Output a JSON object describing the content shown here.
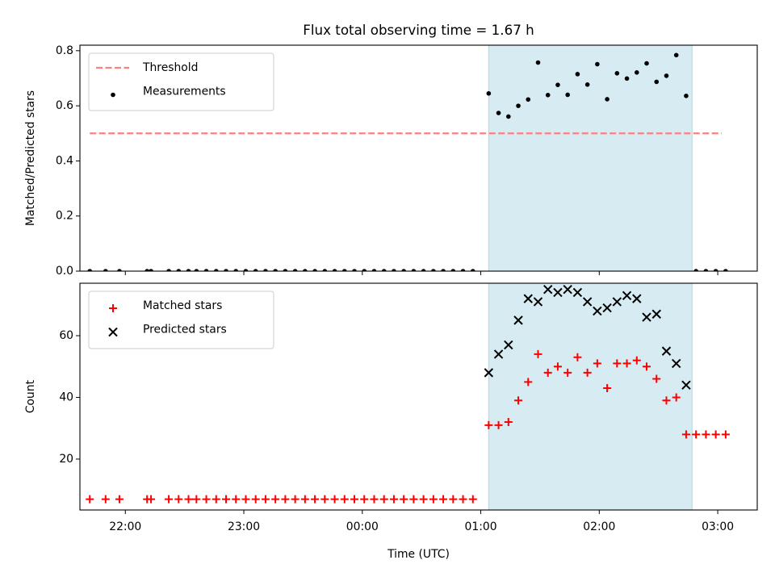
{
  "chart_data": [
    {
      "type": "scatter",
      "title": "Flux total observing time = 1.67 h",
      "xlabel": "",
      "ylabel": "Matched/Predicted stars",
      "xlim": [
        "21:37",
        "03:20"
      ],
      "ylim": [
        0,
        0.82
      ],
      "yticks": [
        0.0,
        0.2,
        0.4,
        0.6,
        0.8
      ],
      "ytick_labels": [
        "0.0",
        "0.2",
        "0.4",
        "0.6",
        "0.8"
      ],
      "legend_position": "upper left",
      "shaded_span": [
        "01:04",
        "02:47"
      ],
      "threshold": {
        "name": "Threshold",
        "value": 0.5,
        "x_range": [
          "21:42",
          "03:02"
        ],
        "color": "#ff7f7f"
      },
      "series": [
        {
          "name": "Measurements",
          "marker": "dot",
          "color": "#000000",
          "x": [
            "21:42",
            "21:50",
            "21:57",
            "22:11",
            "22:13",
            "22:22",
            "22:27",
            "22:32",
            "22:36",
            "22:41",
            "22:46",
            "22:51",
            "22:56",
            "23:01",
            "23:06",
            "23:11",
            "23:16",
            "23:21",
            "23:26",
            "23:31",
            "23:36",
            "23:41",
            "23:46",
            "23:51",
            "23:56",
            "00:01",
            "00:06",
            "00:11",
            "00:16",
            "00:21",
            "00:26",
            "00:31",
            "00:36",
            "00:41",
            "00:46",
            "00:51",
            "00:56",
            "01:04",
            "01:09",
            "01:14",
            "01:19",
            "01:24",
            "01:29",
            "01:34",
            "01:39",
            "01:44",
            "01:49",
            "01:54",
            "01:59",
            "02:04",
            "02:09",
            "02:14",
            "02:19",
            "02:24",
            "02:29",
            "02:34",
            "02:39",
            "02:44",
            "02:49",
            "02:54",
            "02:59",
            "03:04"
          ],
          "y": [
            0,
            0,
            0,
            0,
            0,
            0,
            0,
            0,
            0,
            0,
            0,
            0,
            0,
            0,
            0,
            0,
            0,
            0,
            0,
            0,
            0,
            0,
            0,
            0,
            0,
            0,
            0,
            0,
            0,
            0,
            0,
            0,
            0,
            0,
            0,
            0,
            0,
            0.645,
            0.574,
            0.561,
            0.6,
            0.623,
            0.757,
            0.639,
            0.676,
            0.64,
            0.715,
            0.677,
            0.751,
            0.624,
            0.718,
            0.699,
            0.721,
            0.754,
            0.687,
            0.709,
            0.784,
            0.636,
            0,
            0,
            0,
            0
          ]
        }
      ]
    },
    {
      "type": "scatter",
      "title": "",
      "xlabel": "Time (UTC)",
      "ylabel": "Count",
      "xlim": [
        "21:37",
        "03:20"
      ],
      "ylim": [
        3.5,
        77
      ],
      "yticks": [
        20,
        40,
        60
      ],
      "ytick_labels": [
        "20",
        "40",
        "60"
      ],
      "xticks": [
        "22:00",
        "23:00",
        "00:00",
        "01:00",
        "02:00",
        "03:00"
      ],
      "xtick_labels": [
        "22:00",
        "23:00",
        "00:00",
        "01:00",
        "02:00",
        "03:00"
      ],
      "legend_position": "upper left",
      "shaded_span": [
        "01:04",
        "02:47"
      ],
      "series": [
        {
          "name": "Matched stars",
          "marker": "plus",
          "color": "#ff0000",
          "x": [
            "21:42",
            "21:50",
            "21:57",
            "22:11",
            "22:13",
            "22:22",
            "22:27",
            "22:32",
            "22:36",
            "22:41",
            "22:46",
            "22:51",
            "22:56",
            "23:01",
            "23:06",
            "23:11",
            "23:16",
            "23:21",
            "23:26",
            "23:31",
            "23:36",
            "23:41",
            "23:46",
            "23:51",
            "23:56",
            "00:01",
            "00:06",
            "00:11",
            "00:16",
            "00:21",
            "00:26",
            "00:31",
            "00:36",
            "00:41",
            "00:46",
            "00:51",
            "00:56",
            "01:04",
            "01:09",
            "01:14",
            "01:19",
            "01:24",
            "01:29",
            "01:34",
            "01:39",
            "01:44",
            "01:49",
            "01:54",
            "01:59",
            "02:04",
            "02:09",
            "02:14",
            "02:19",
            "02:24",
            "02:29",
            "02:34",
            "02:39",
            "02:44",
            "02:49",
            "02:54",
            "02:59",
            "03:04"
          ],
          "y": [
            7,
            7,
            7,
            7,
            7,
            7,
            7,
            7,
            7,
            7,
            7,
            7,
            7,
            7,
            7,
            7,
            7,
            7,
            7,
            7,
            7,
            7,
            7,
            7,
            7,
            7,
            7,
            7,
            7,
            7,
            7,
            7,
            7,
            7,
            7,
            7,
            7,
            31,
            31,
            32,
            39,
            45,
            54,
            48,
            50,
            48,
            53,
            48,
            51,
            43,
            51,
            51,
            52,
            50,
            46,
            39,
            40,
            28,
            28,
            28,
            28,
            28
          ]
        },
        {
          "name": "Predicted stars",
          "marker": "x",
          "color": "#000000",
          "x": [
            "01:04",
            "01:09",
            "01:14",
            "01:19",
            "01:24",
            "01:29",
            "01:34",
            "01:39",
            "01:44",
            "01:49",
            "01:54",
            "01:59",
            "02:04",
            "02:09",
            "02:14",
            "02:19",
            "02:24",
            "02:29",
            "02:34",
            "02:39",
            "02:44"
          ],
          "y": [
            48,
            54,
            57,
            65,
            72,
            71,
            75,
            74,
            75,
            74,
            71,
            68,
            69,
            71,
            73,
            72,
            66,
            67,
            55,
            51,
            44
          ]
        }
      ]
    }
  ]
}
